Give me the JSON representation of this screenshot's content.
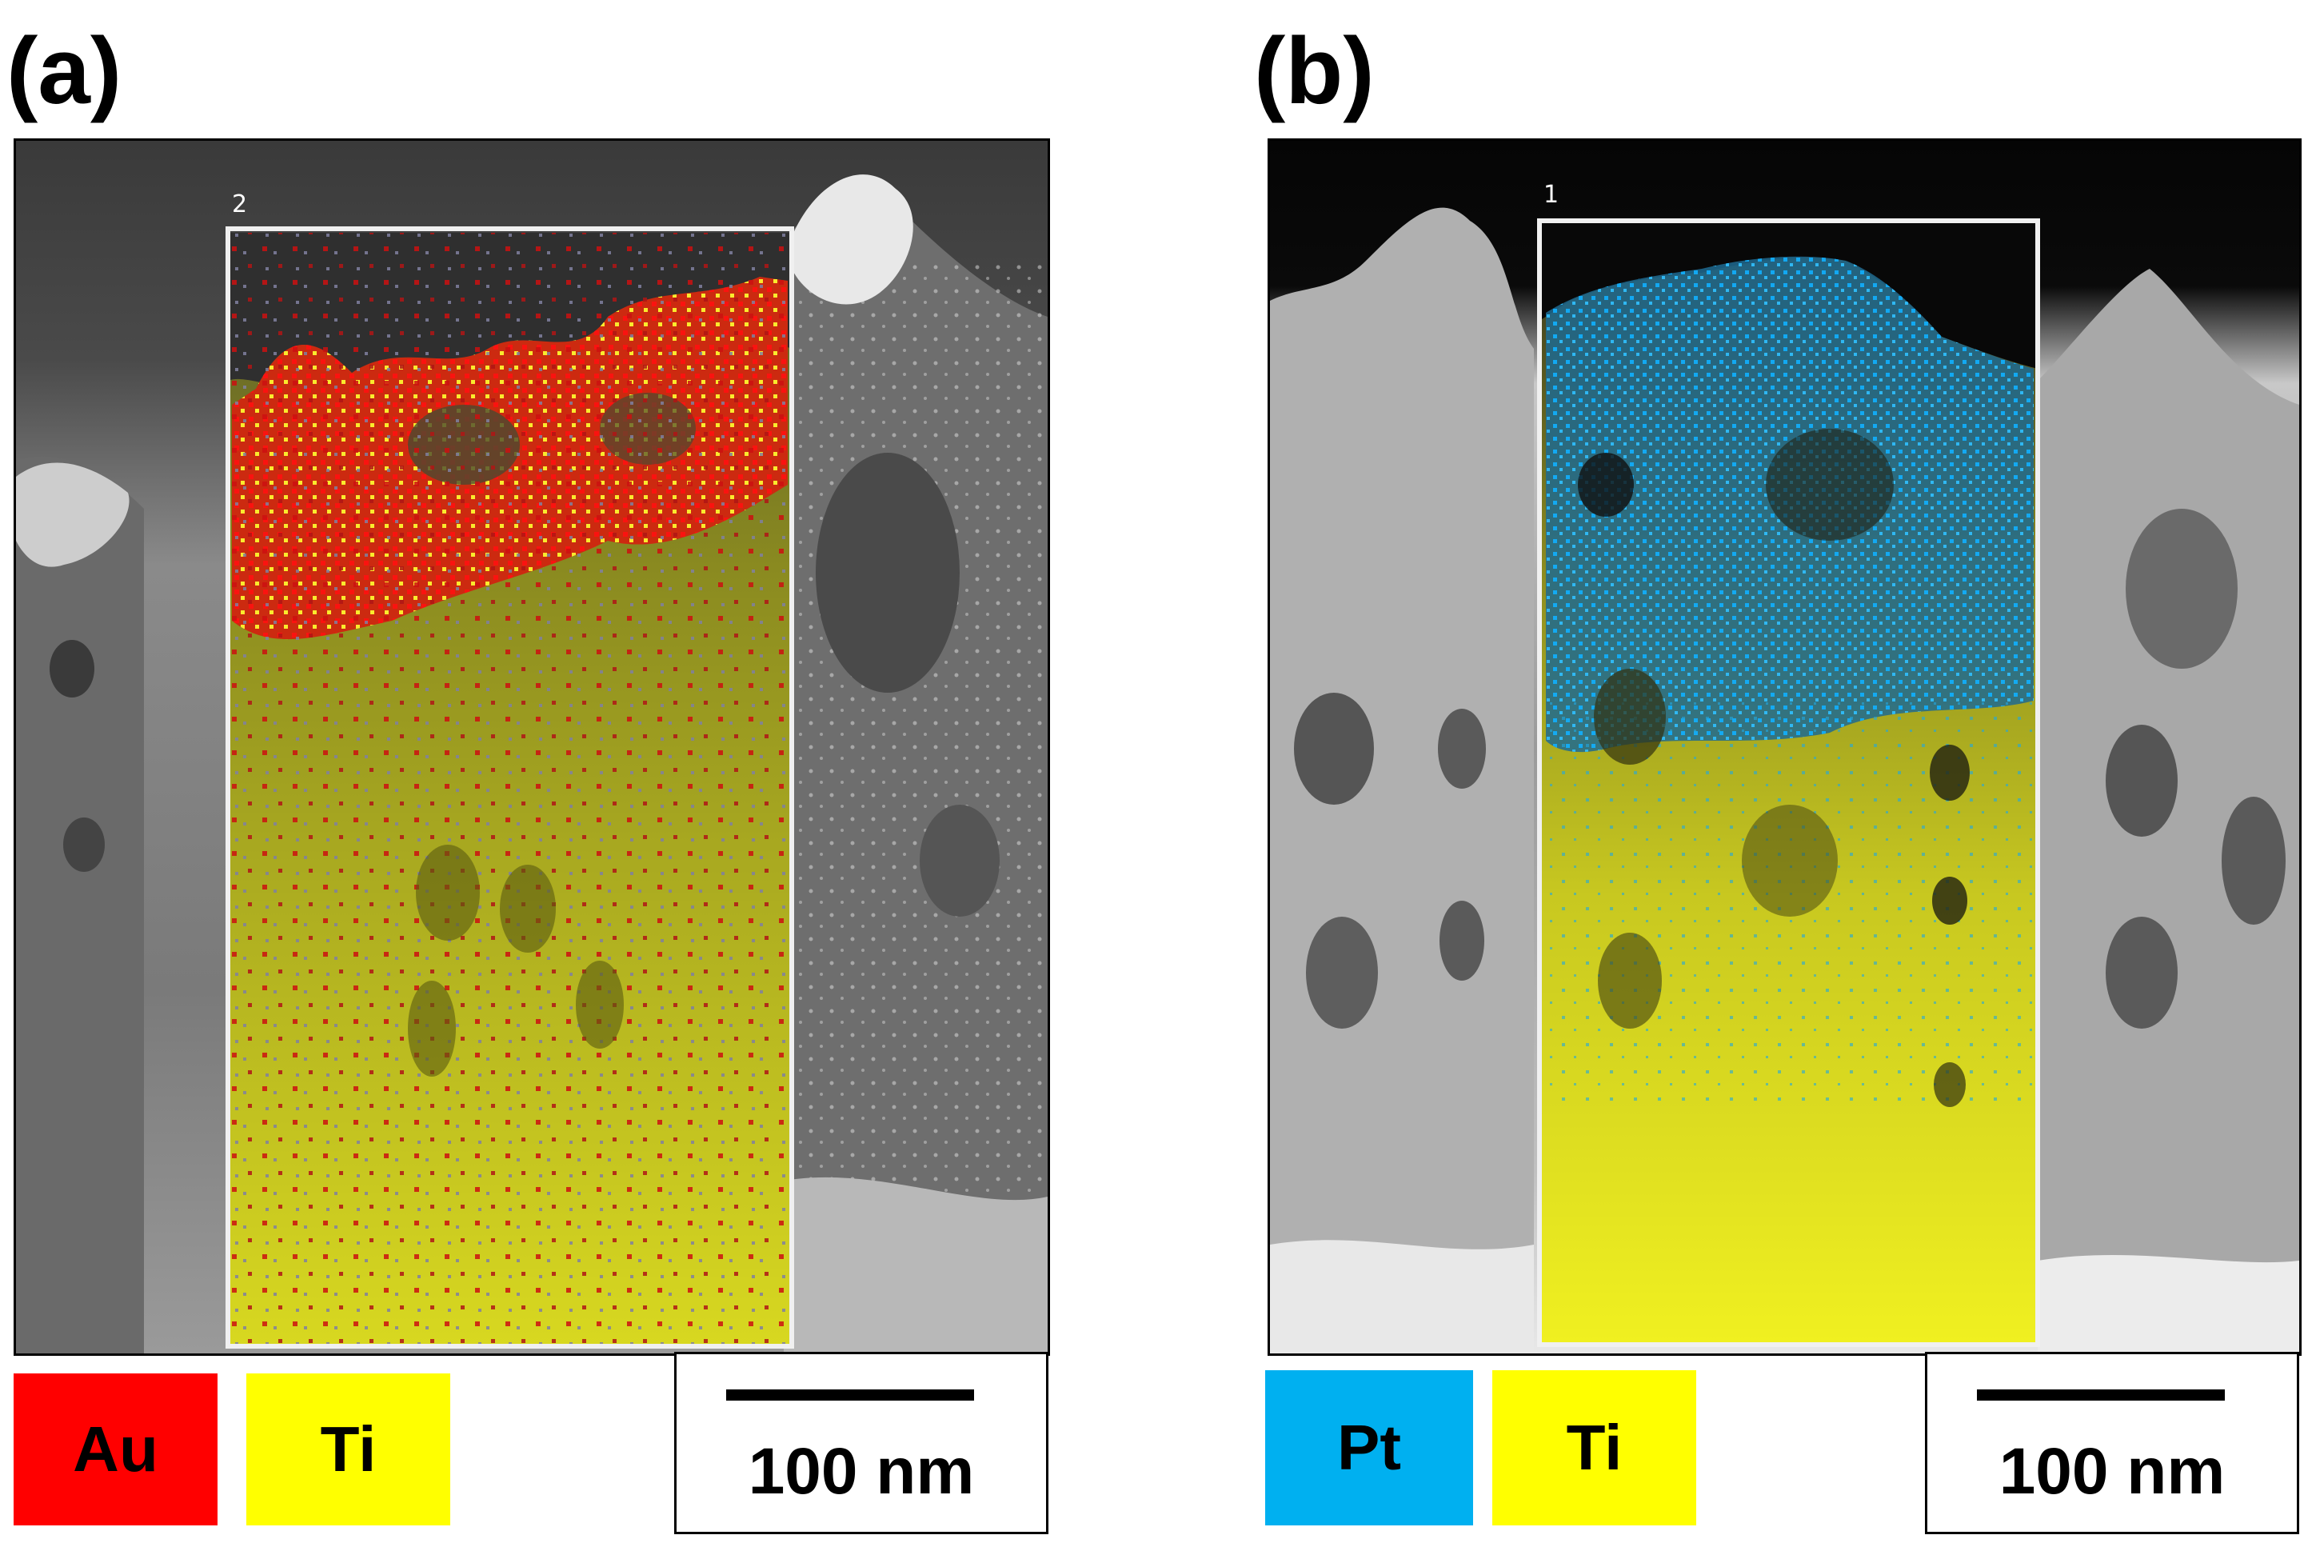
{
  "panels": [
    {
      "label": "(a)",
      "roi_number": "2",
      "legend": [
        {
          "element": "Au",
          "color": "#ff0000"
        },
        {
          "element": "Ti",
          "color": "#ffff00"
        }
      ],
      "scale_bar": {
        "text": "100 nm"
      }
    },
    {
      "label": "(b)",
      "roi_number": "1",
      "legend": [
        {
          "element": "Pt",
          "color": "#00b0f0"
        },
        {
          "element": "Ti",
          "color": "#ffff00"
        }
      ],
      "scale_bar": {
        "text": "100 nm"
      }
    }
  ]
}
